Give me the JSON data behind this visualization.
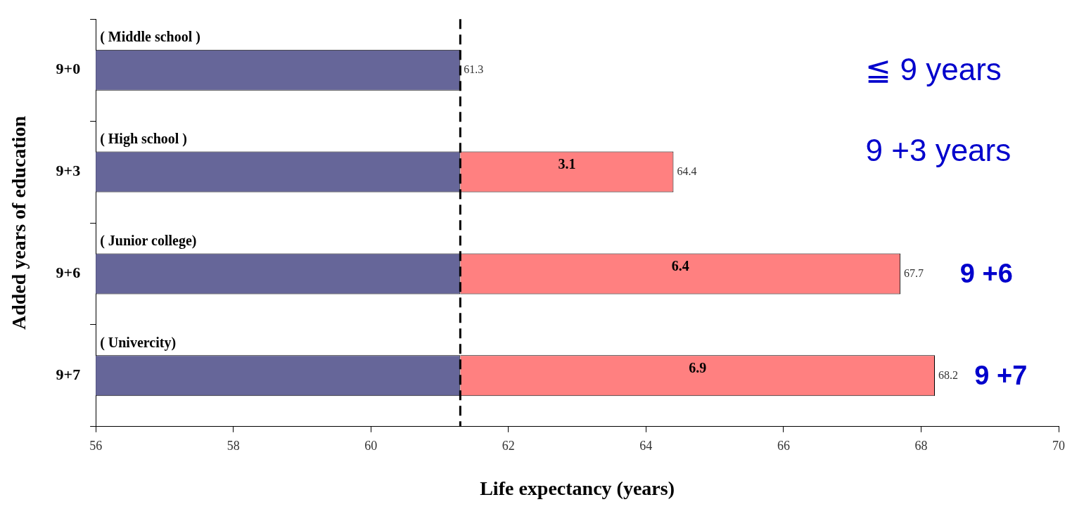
{
  "chart_data": {
    "type": "bar",
    "orientation": "horizontal",
    "stacked": true,
    "categories": [
      "9+0",
      "9+3",
      "9+6",
      "9+7"
    ],
    "xlabel": "Life expectancy (years)",
    "ylabel": "Added years of education",
    "series": [
      {
        "color": "#666699",
        "values": [
          61.3,
          61.3,
          61.3,
          61.3
        ]
      },
      {
        "color": "#ff8080",
        "base": [
          null,
          61.3,
          61.3,
          61.3
        ],
        "values": [
          null,
          3.1,
          6.4,
          6.9
        ],
        "value_labels": [
          null,
          "3.1",
          "6.4",
          "6.9"
        ]
      }
    ],
    "totals": [
      "61.3",
      "64.4",
      "67.7",
      "68.2"
    ],
    "xlim": [
      56,
      70
    ],
    "xticks": [
      56,
      58,
      60,
      62,
      64,
      66,
      68,
      70
    ],
    "ref_lines": [
      {
        "axis": "x",
        "value": 61.3,
        "line_style": "dashed",
        "color": "#000000"
      }
    ],
    "annotations": [
      "( Middle school )",
      "( High school )",
      "( Junior college)",
      "( Univercity)",
      "≦ 9 years",
      "9 +3 years",
      "9 +6",
      "9 +7"
    ],
    "grid": false,
    "legend": false
  }
}
